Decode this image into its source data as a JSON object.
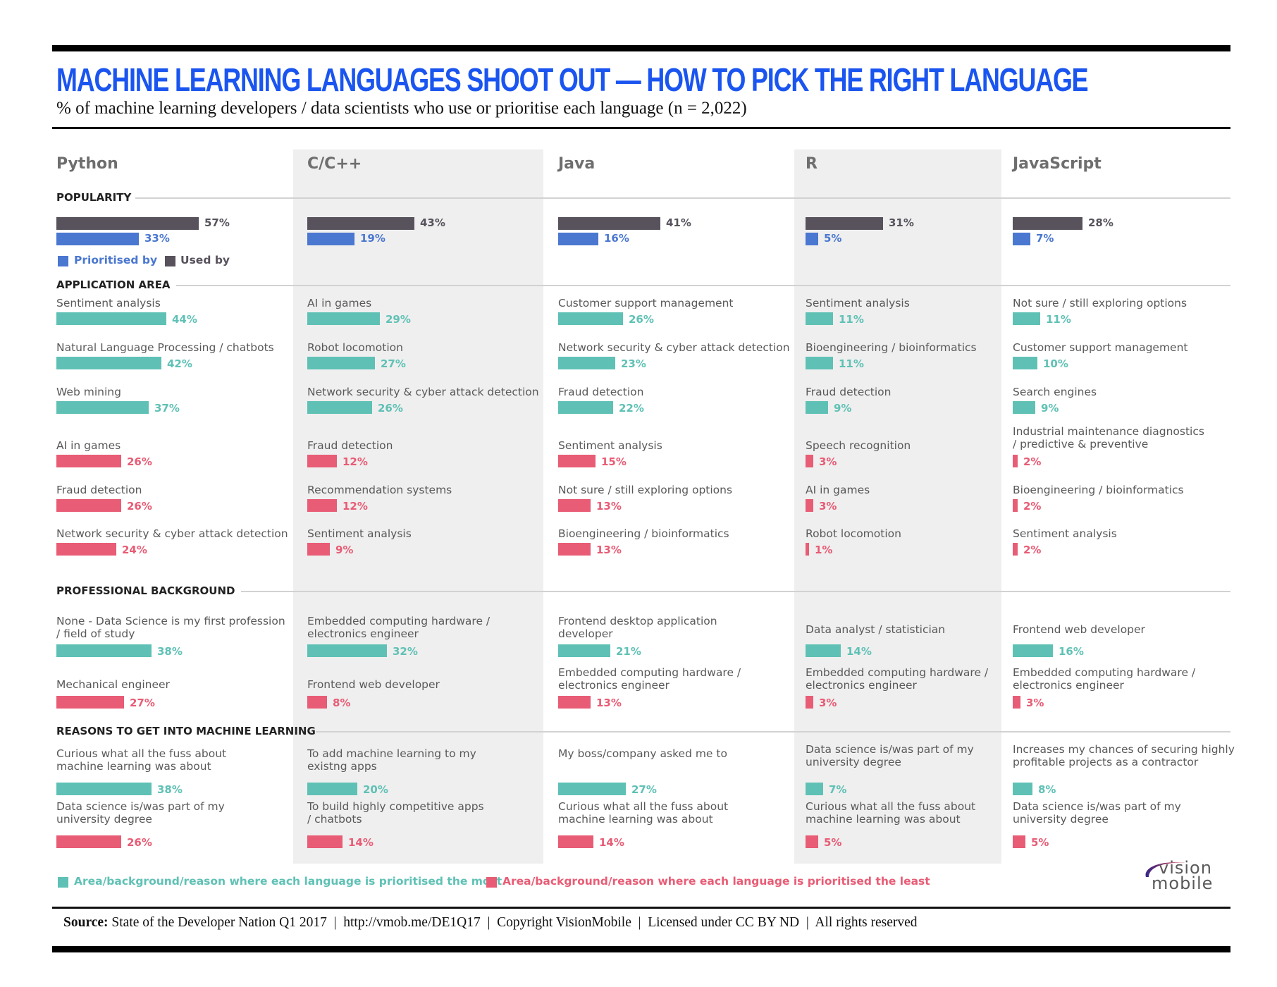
{
  "header": {
    "title": "MACHINE LEARNING LANGUAGES SHOOT OUT —  HOW TO PICK THE RIGHT LANGUAGE",
    "subtitle": "% of machine learning developers / data scientists who use or prioritise each language (n = 2,022)"
  },
  "sections": {
    "popularity": "POPULARITY",
    "application_area": "APPLICATION AREA",
    "professional_background": "PROFESSIONAL BACKGROUND",
    "reasons": "REASONS TO GET INTO MACHINE LEARNING"
  },
  "popularity_legend": {
    "prioritised": "Prioritised by",
    "used": "Used by"
  },
  "bottom_legend": {
    "most": "Area/background/reason where each language is prioritised the most",
    "least": "Area/background/reason where each language is prioritised the least"
  },
  "colors": {
    "title": "#1a55f0",
    "used_by": "#57525c",
    "prioritised_by": "#4a77d0",
    "most": "#5fc1b5",
    "least": "#e85c75",
    "shade": "#efefef"
  },
  "footer": {
    "source_label": "Source:",
    "source_text": " State of the Developer Nation Q1 2017  |  http://vmob.me/DE1Q17  |  Copyright VisionMobile  |  Licensed under CC BY ND  |  All rights reserved"
  },
  "logo": {
    "line1": "vision",
    "line2": "mobile"
  },
  "languages": [
    {
      "name": "Python",
      "used": {
        "value": 57,
        "label": "57%"
      },
      "prioritised": {
        "value": 33,
        "label": "33%"
      },
      "application": [
        {
          "label": "Sentiment analysis",
          "value": 44,
          "pct": "44%",
          "kind": "most"
        },
        {
          "label": "Natural Language Processing / chatbots",
          "value": 42,
          "pct": "42%",
          "kind": "most"
        },
        {
          "label": "Web mining",
          "value": 37,
          "pct": "37%",
          "kind": "most"
        },
        {
          "label": "AI in games",
          "value": 26,
          "pct": "26%",
          "kind": "least"
        },
        {
          "label": "Fraud detection",
          "value": 26,
          "pct": "26%",
          "kind": "least"
        },
        {
          "label": "Network security & cyber attack detection",
          "value": 24,
          "pct": "24%",
          "kind": "least"
        }
      ],
      "background": [
        {
          "label": "None - Data Science is my first profession",
          "label2": "/ field of study",
          "value": 38,
          "pct": "38%",
          "kind": "most"
        },
        {
          "label": "Mechanical engineer",
          "label2": "",
          "value": 27,
          "pct": "27%",
          "kind": "least"
        }
      ],
      "reasons": [
        {
          "label": "Curious what all the fuss about",
          "label2": "machine learning was about",
          "value": 38,
          "pct": "38%",
          "kind": "most"
        },
        {
          "label": "Data science is/was part of my",
          "label2": "university degree",
          "value": 26,
          "pct": "26%",
          "kind": "least"
        }
      ]
    },
    {
      "name": "C/C++",
      "used": {
        "value": 43,
        "label": "43%"
      },
      "prioritised": {
        "value": 19,
        "label": "19%"
      },
      "application": [
        {
          "label": "AI in games",
          "value": 29,
          "pct": "29%",
          "kind": "most"
        },
        {
          "label": "Robot locomotion",
          "value": 27,
          "pct": "27%",
          "kind": "most"
        },
        {
          "label": "Network security & cyber attack detection",
          "value": 26,
          "pct": "26%",
          "kind": "most"
        },
        {
          "label": "Fraud detection",
          "value": 12,
          "pct": "12%",
          "kind": "least"
        },
        {
          "label": "Recommendation systems",
          "value": 12,
          "pct": "12%",
          "kind": "least"
        },
        {
          "label": "Sentiment analysis",
          "value": 9,
          "pct": "9%",
          "kind": "least"
        }
      ],
      "background": [
        {
          "label": "Embedded computing hardware /",
          "label2": "electronics engineer",
          "value": 32,
          "pct": "32%",
          "kind": "most"
        },
        {
          "label": "Frontend web developer",
          "label2": "",
          "value": 8,
          "pct": "8%",
          "kind": "least"
        }
      ],
      "reasons": [
        {
          "label": "To add machine learning to my",
          "label2": "existng apps",
          "value": 20,
          "pct": "20%",
          "kind": "most"
        },
        {
          "label": "To build highly competitive apps",
          "label2": "/ chatbots",
          "value": 14,
          "pct": "14%",
          "kind": "least"
        }
      ]
    },
    {
      "name": "Java",
      "used": {
        "value": 41,
        "label": "41%"
      },
      "prioritised": {
        "value": 16,
        "label": "16%"
      },
      "application": [
        {
          "label": "Customer support management",
          "value": 26,
          "pct": "26%",
          "kind": "most"
        },
        {
          "label": "Network security & cyber attack detection",
          "value": 23,
          "pct": "23%",
          "kind": "most"
        },
        {
          "label": "Fraud detection",
          "value": 22,
          "pct": "22%",
          "kind": "most"
        },
        {
          "label": "Sentiment analysis",
          "value": 15,
          "pct": "15%",
          "kind": "least"
        },
        {
          "label": "Not sure / still exploring options",
          "value": 13,
          "pct": "13%",
          "kind": "least"
        },
        {
          "label": "Bioengineering / bioinformatics",
          "value": 13,
          "pct": "13%",
          "kind": "least"
        }
      ],
      "background": [
        {
          "label": "Frontend desktop application",
          "label2": "developer",
          "value": 21,
          "pct": "21%",
          "kind": "most"
        },
        {
          "label": "Embedded computing hardware /",
          "label2": "electronics engineer",
          "value": 13,
          "pct": "13%",
          "kind": "least"
        }
      ],
      "reasons": [
        {
          "label": "My boss/company asked me to",
          "label2": "",
          "value": 27,
          "pct": "27%",
          "kind": "most"
        },
        {
          "label": "Curious what all the fuss about",
          "label2": "machine learning was about",
          "value": 14,
          "pct": "14%",
          "kind": "least"
        }
      ]
    },
    {
      "name": "R",
      "used": {
        "value": 31,
        "label": "31%"
      },
      "prioritised": {
        "value": 5,
        "label": "5%"
      },
      "application": [
        {
          "label": "Sentiment analysis",
          "value": 11,
          "pct": "11%",
          "kind": "most"
        },
        {
          "label": "Bioengineering / bioinformatics",
          "value": 11,
          "pct": "11%",
          "kind": "most"
        },
        {
          "label": "Fraud detection",
          "value": 9,
          "pct": "9%",
          "kind": "most"
        },
        {
          "label": "Speech recognition",
          "value": 3,
          "pct": "3%",
          "kind": "least"
        },
        {
          "label": "AI in games",
          "value": 3,
          "pct": "3%",
          "kind": "least"
        },
        {
          "label": "Robot locomotion",
          "value": 1,
          "pct": "1%",
          "kind": "least"
        }
      ],
      "background": [
        {
          "label": "Data analyst / statistician",
          "label2": "",
          "value": 14,
          "pct": "14%",
          "kind": "most"
        },
        {
          "label": "Embedded computing hardware /",
          "label2": "electronics engineer",
          "value": 3,
          "pct": "3%",
          "kind": "least"
        }
      ],
      "reasons": [
        {
          "label": "Data science is/was part of my",
          "label2": "university degree",
          "value": 7,
          "pct": "7%",
          "kind": "most"
        },
        {
          "label": "Curious what all the fuss about",
          "label2": "machine learning was about",
          "value": 5,
          "pct": "5%",
          "kind": "least"
        }
      ]
    },
    {
      "name": "JavaScript",
      "used": {
        "value": 28,
        "label": "28%"
      },
      "prioritised": {
        "value": 7,
        "label": "7%"
      },
      "application": [
        {
          "label": "Not sure / still exploring options",
          "value": 11,
          "pct": "11%",
          "kind": "most"
        },
        {
          "label": "Customer support management",
          "value": 10,
          "pct": "10%",
          "kind": "most"
        },
        {
          "label": "Search engines",
          "value": 9,
          "pct": "9%",
          "kind": "most"
        },
        {
          "label": "Industrial maintenance diagnostics",
          "label2": "/ predictive & preventive",
          "value": 2,
          "pct": "2%",
          "kind": "least"
        },
        {
          "label": "Bioengineering / bioinformatics",
          "value": 2,
          "pct": "2%",
          "kind": "least"
        },
        {
          "label": "Sentiment analysis",
          "value": 2,
          "pct": "2%",
          "kind": "least"
        }
      ],
      "background": [
        {
          "label": "Frontend web developer",
          "label2": "",
          "value": 16,
          "pct": "16%",
          "kind": "most"
        },
        {
          "label": "Embedded computing hardware /",
          "label2": "electronics engineer",
          "value": 3,
          "pct": "3%",
          "kind": "least"
        }
      ],
      "reasons": [
        {
          "label": "Increases my chances of securing highly",
          "label2": "profitable projects as a contractor",
          "value": 8,
          "pct": "8%",
          "kind": "most"
        },
        {
          "label": "Data science is/was part of my",
          "label2": "university degree",
          "value": 5,
          "pct": "5%",
          "kind": "least"
        }
      ]
    }
  ],
  "chart_data": {
    "type": "bar",
    "title": "MACHINE LEARNING LANGUAGES SHOOT OUT — HOW TO PICK THE RIGHT LANGUAGE",
    "subtitle": "% of machine learning developers / data scientists who use or prioritise each language (n = 2,022)",
    "categories": [
      "Python",
      "C/C++",
      "Java",
      "R",
      "JavaScript"
    ],
    "series": [
      {
        "name": "Used by",
        "values": [
          57,
          43,
          41,
          31,
          28
        ]
      },
      {
        "name": "Prioritised by",
        "values": [
          33,
          19,
          16,
          5,
          7
        ]
      }
    ],
    "application_area": {
      "Python": {
        "most": [
          [
            "Sentiment analysis",
            44
          ],
          [
            "Natural Language Processing / chatbots",
            42
          ],
          [
            "Web mining",
            37
          ]
        ],
        "least": [
          [
            "AI in games",
            26
          ],
          [
            "Fraud detection",
            26
          ],
          [
            "Network security & cyber attack detection",
            24
          ]
        ]
      },
      "C/C++": {
        "most": [
          [
            "AI in games",
            29
          ],
          [
            "Robot locomotion",
            27
          ],
          [
            "Network security & cyber attack detection",
            26
          ]
        ],
        "least": [
          [
            "Fraud detection",
            12
          ],
          [
            "Recommendation systems",
            12
          ],
          [
            "Sentiment analysis",
            9
          ]
        ]
      },
      "Java": {
        "most": [
          [
            "Customer support management",
            26
          ],
          [
            "Network security & cyber attack detection",
            23
          ],
          [
            "Fraud detection",
            22
          ]
        ],
        "least": [
          [
            "Sentiment analysis",
            15
          ],
          [
            "Not sure / still exploring options",
            13
          ],
          [
            "Bioengineering / bioinformatics",
            13
          ]
        ]
      },
      "R": {
        "most": [
          [
            "Sentiment analysis",
            11
          ],
          [
            "Bioengineering / bioinformatics",
            11
          ],
          [
            "Fraud detection",
            9
          ]
        ],
        "least": [
          [
            "Speech recognition",
            3
          ],
          [
            "AI in games",
            3
          ],
          [
            "Robot locomotion",
            1
          ]
        ]
      },
      "JavaScript": {
        "most": [
          [
            "Not sure / still exploring options",
            11
          ],
          [
            "Customer support management",
            10
          ],
          [
            "Search engines",
            9
          ]
        ],
        "least": [
          [
            "Industrial maintenance diagnostics / predictive & preventive",
            2
          ],
          [
            "Bioengineering / bioinformatics",
            2
          ],
          [
            "Sentiment analysis",
            2
          ]
        ]
      }
    },
    "professional_background": {
      "Python": {
        "most": [
          "None - Data Science is my first profession / field of study",
          38
        ],
        "least": [
          "Mechanical engineer",
          27
        ]
      },
      "C/C++": {
        "most": [
          "Embedded computing hardware / electronics engineer",
          32
        ],
        "least": [
          "Frontend web developer",
          8
        ]
      },
      "Java": {
        "most": [
          "Frontend desktop application developer",
          21
        ],
        "least": [
          "Embedded computing hardware / electronics engineer",
          13
        ]
      },
      "R": {
        "most": [
          "Data analyst / statistician",
          14
        ],
        "least": [
          "Embedded computing hardware / electronics engineer",
          3
        ]
      },
      "JavaScript": {
        "most": [
          "Frontend web developer",
          16
        ],
        "least": [
          "Embedded computing hardware / electronics engineer",
          3
        ]
      }
    },
    "reasons": {
      "Python": {
        "most": [
          "Curious what all the fuss about machine learning was about",
          38
        ],
        "least": [
          "Data science is/was part of my university degree",
          26
        ]
      },
      "C/C++": {
        "most": [
          "To add machine learning to my existng apps",
          20
        ],
        "least": [
          "To build highly competitive apps / chatbots",
          14
        ]
      },
      "Java": {
        "most": [
          "My boss/company asked me to",
          27
        ],
        "least": [
          "Curious what all the fuss about machine learning was about",
          14
        ]
      },
      "R": {
        "most": [
          "Data science is/was part of my university degree",
          7
        ],
        "least": [
          "Curious what all the fuss about machine learning was about",
          5
        ]
      },
      "JavaScript": {
        "most": [
          "Increases my chances of securing highly profitable projects as a contractor",
          8
        ],
        "least": [
          "Data science is/was part of my university degree",
          5
        ]
      }
    },
    "legend": [
      "Prioritised by",
      "Used by",
      "Area/background/reason where each language is prioritised the most",
      "Area/background/reason where each language is prioritised the least"
    ],
    "unit": "%",
    "grid": false
  }
}
